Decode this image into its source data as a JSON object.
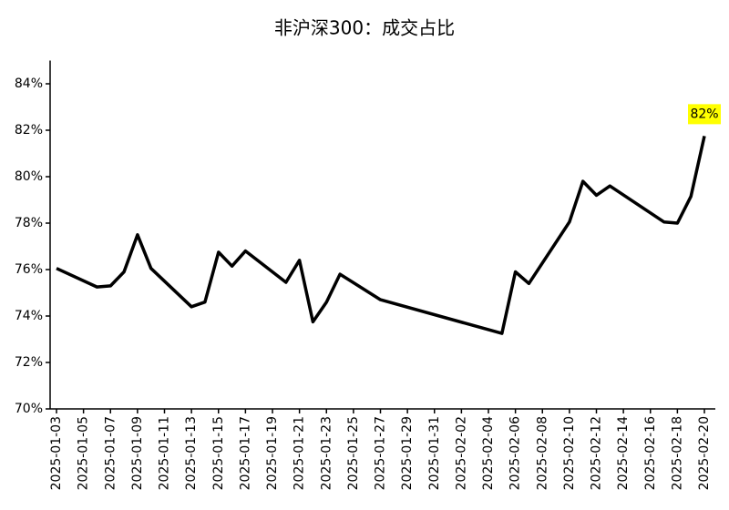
{
  "chart_data": {
    "type": "line",
    "title": "非沪深300：成交占比",
    "x": [
      "2025-01-03",
      "2025-01-06",
      "2025-01-07",
      "2025-01-08",
      "2025-01-09",
      "2025-01-10",
      "2025-01-13",
      "2025-01-14",
      "2025-01-15",
      "2025-01-16",
      "2025-01-17",
      "2025-01-20",
      "2025-01-21",
      "2025-01-22",
      "2025-01-23",
      "2025-01-24",
      "2025-01-27",
      "2025-02-05",
      "2025-02-06",
      "2025-02-07",
      "2025-02-10",
      "2025-02-11",
      "2025-02-12",
      "2025-02-13",
      "2025-02-17",
      "2025-02-18",
      "2025-02-19",
      "2025-02-20"
    ],
    "series": [
      {
        "color": "#000000",
        "values": [
          76.05,
          75.25,
          75.3,
          75.9,
          77.5,
          76.05,
          74.4,
          74.6,
          76.75,
          76.15,
          76.8,
          75.45,
          76.4,
          73.75,
          74.6,
          75.8,
          74.7,
          73.25,
          75.9,
          75.4,
          78.05,
          79.8,
          79.2,
          79.6,
          78.05,
          78.0,
          79.15,
          81.75
        ],
        "value_labels": [
          null,
          null,
          null,
          null,
          null,
          null,
          null,
          null,
          null,
          null,
          null,
          null,
          null,
          null,
          null,
          null,
          null,
          null,
          null,
          null,
          null,
          null,
          null,
          null,
          null,
          null,
          null,
          "82%"
        ]
      }
    ],
    "xlim": [
      "2025-01-03",
      "2025-02-20"
    ],
    "xticks": [
      "2025-01-03",
      "2025-01-05",
      "2025-01-07",
      "2025-01-09",
      "2025-01-11",
      "2025-01-13",
      "2025-01-15",
      "2025-01-17",
      "2025-01-19",
      "2025-01-21",
      "2025-01-23",
      "2025-01-25",
      "2025-01-27",
      "2025-01-29",
      "2025-01-31",
      "2025-02-02",
      "2025-02-04",
      "2025-02-06",
      "2025-02-08",
      "2025-02-10",
      "2025-02-12",
      "2025-02-14",
      "2025-02-16",
      "2025-02-18",
      "2025-02-20"
    ],
    "ylim": [
      70,
      85
    ],
    "yticks": [
      {
        "value": 70,
        "label": "70%"
      },
      {
        "value": 72,
        "label": "72%"
      },
      {
        "value": 74,
        "label": "74%"
      },
      {
        "value": 76,
        "label": "76%"
      },
      {
        "value": 78,
        "label": "78%"
      },
      {
        "value": 80,
        "label": "80%"
      },
      {
        "value": 82,
        "label": "82%"
      },
      {
        "value": 84,
        "label": "84%"
      }
    ],
    "grid": false
  }
}
